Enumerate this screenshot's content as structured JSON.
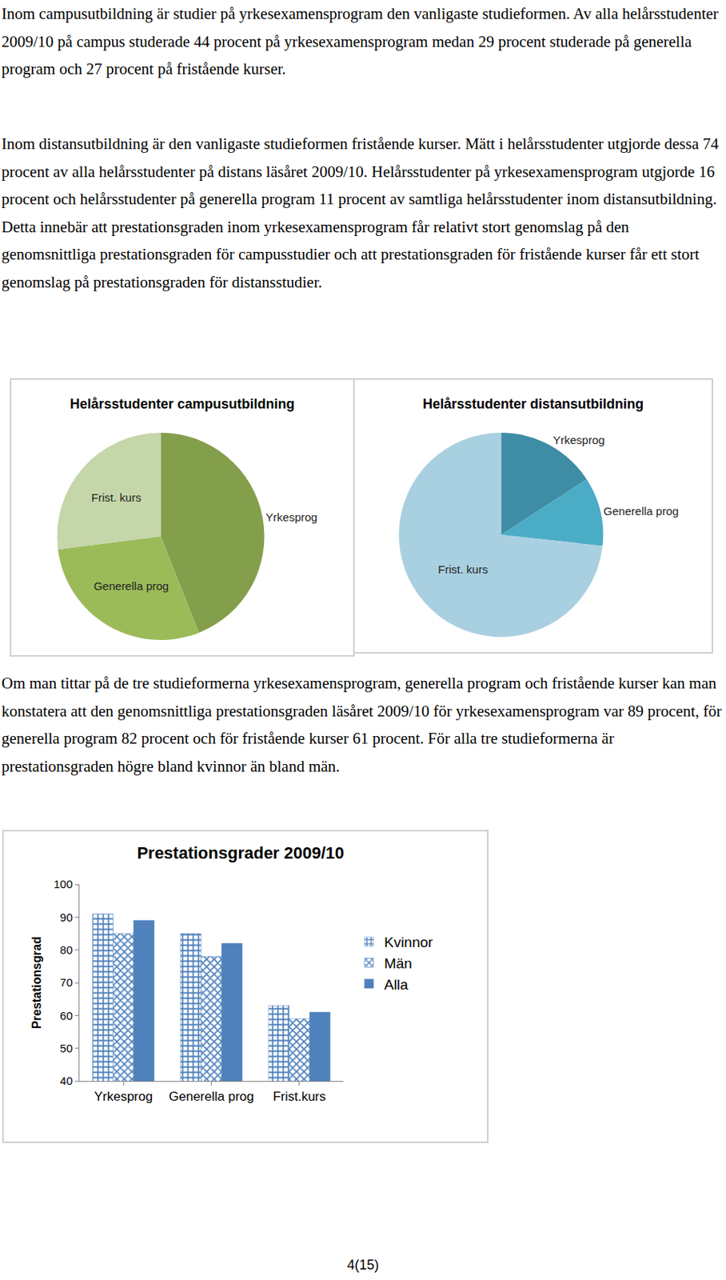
{
  "document": {
    "paragraphs": [
      "Inom campusutbildning är studier på yrkesexamensprogram den vanligaste studieformen. Av alla helårsstudenter 2009/10 på campus studerade 44 procent på yrkesexamensprogram medan 29 procent studerade på generella program och 27 procent på fristående kurser.",
      "Inom distansutbildning är den vanligaste studieformen fristående kurser. Mätt i helårsstudenter utgjorde dessa 74 procent av alla helårsstudenter på distans läsåret 2009/10. Helårsstudenter på yrkesexamensprogram utgjorde 16 procent och helårsstudenter på generella program 11 procent av samtliga helårsstudenter inom distansutbildning. Detta innebär att prestationsgraden inom yrkesexamensprogram får relativt stort genomslag på den genomsnittliga prestationsgraden för campusstudier och att prestationsgraden för fristående kurser får ett stort genomslag på prestationsgraden för distansstudier.",
      "Om man tittar på de tre studieformerna yrkesexamensprogram, generella program och fristående kurser kan man konstatera att den genomsnittliga prestationsgraden läsåret 2009/10 för yrkesexamensprogram var 89 procent, för generella program 82 procent och för fristående kurser 61 procent. För alla tre studieformerna är prestationsgraden högre bland kvinnor än bland män."
    ],
    "footer": "4(15)"
  },
  "chart_data": [
    {
      "type": "pie",
      "title": "Helårsstudenter campusutbildning",
      "categories": [
        "Yrkesprog",
        "Generella prog",
        "Frist. kurs"
      ],
      "values": [
        44,
        29,
        27
      ],
      "colors": [
        "#849f4c",
        "#9bbb59",
        "#c5d6a9"
      ]
    },
    {
      "type": "pie",
      "title": "Helårsstudenter distansutbildning",
      "categories": [
        "Yrkesprog",
        "Generella prog",
        "Frist. kurs"
      ],
      "values": [
        16,
        11,
        74
      ],
      "colors": [
        "#3e8da5",
        "#4bacc6",
        "#a9d0e0"
      ]
    },
    {
      "type": "bar",
      "title": "Prestationsgrader 2009/10",
      "y_label": "Prestationsgrad",
      "categories": [
        "Yrkesprog",
        "Generella prog",
        "Frist.kurs"
      ],
      "series": [
        {
          "name": "Kvinnor",
          "color": "#4f81bd",
          "values": [
            91,
            85,
            63
          ]
        },
        {
          "name": "Män",
          "color": "#4f81bd",
          "values": [
            85,
            78,
            59
          ]
        },
        {
          "name": "Alla",
          "color": "#4f81bd",
          "values": [
            89,
            82,
            61
          ]
        }
      ],
      "ylim": [
        40,
        100
      ],
      "yticks": [
        40,
        50,
        60,
        70,
        80,
        90,
        100
      ],
      "grid": false,
      "legend": "right"
    }
  ]
}
